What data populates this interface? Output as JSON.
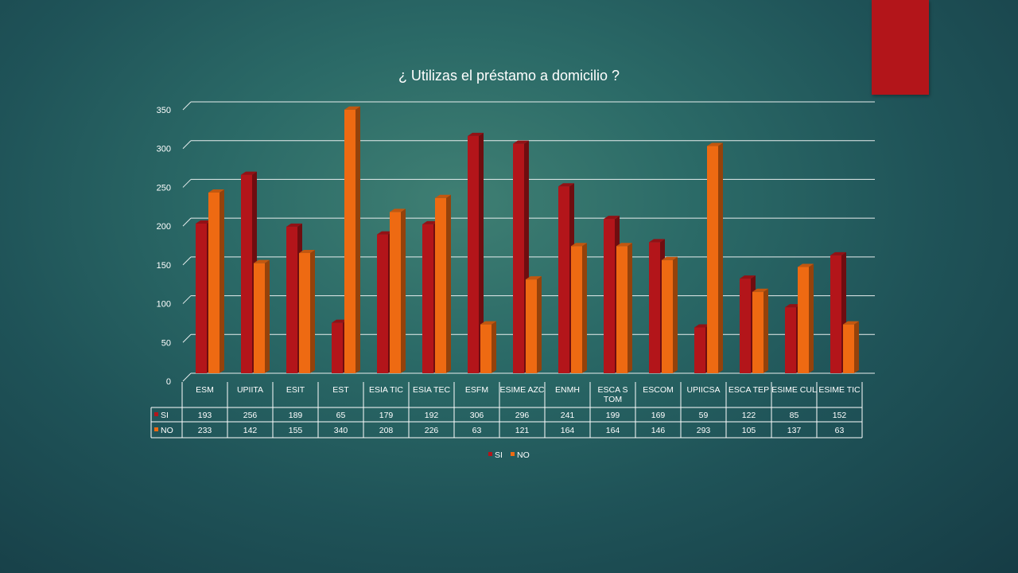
{
  "slide": {
    "accent_color": "#b3151a"
  },
  "chart_data": {
    "type": "bar",
    "title": "¿ Utilizas el préstamo a domicilio ?",
    "xlabel": "",
    "ylabel": "",
    "ylim": [
      0,
      350
    ],
    "y_ticks": [
      0,
      50,
      100,
      150,
      200,
      250,
      300,
      350
    ],
    "grid": true,
    "legend_position": "bottom",
    "data_table": true,
    "categories": [
      "ESM",
      "UPIITA",
      "ESIT",
      "EST",
      "ESIA TIC",
      "ESIA TEC",
      "ESFM",
      "ESIME AZC",
      "ENMH",
      "ESCA S TOM",
      "ESCOM",
      "UPIICSA",
      "ESCA TEP",
      "ESIME CUL",
      "ESIME TIC"
    ],
    "series": [
      {
        "name": "SI",
        "color": "#b3151a",
        "values": [
          193,
          256,
          189,
          65,
          179,
          192,
          306,
          296,
          241,
          199,
          169,
          59,
          122,
          85,
          152
        ]
      },
      {
        "name": "NO",
        "color": "#ee6a12",
        "values": [
          233,
          142,
          155,
          340,
          208,
          226,
          63,
          121,
          164,
          164,
          146,
          293,
          105,
          137,
          63
        ]
      }
    ]
  }
}
